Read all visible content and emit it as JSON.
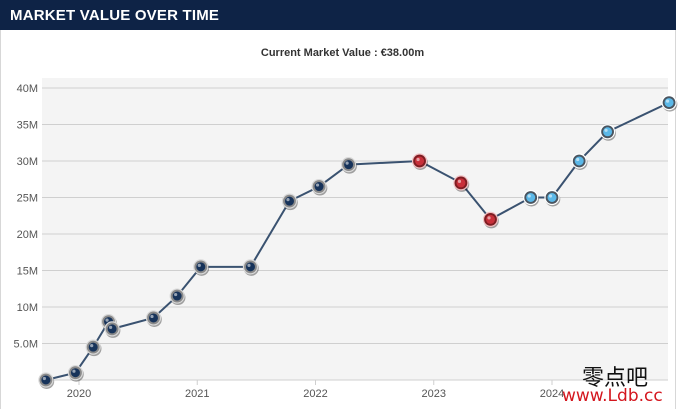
{
  "header": {
    "title": "Market value over time"
  },
  "chart": {
    "subtitle": "Current Market Value : €38.00m"
  },
  "watermark": {
    "chinese": "零点吧",
    "url": "www.Ldb.cc"
  },
  "chart_data": {
    "type": "line",
    "title": "Current Market Value : €38.00m",
    "xlabel": "",
    "ylabel": "",
    "x_ticks": [
      "2020",
      "2021",
      "2022",
      "2023",
      "2024"
    ],
    "y_ticks": [
      "5.0M",
      "10M",
      "15M",
      "20M",
      "25M",
      "30M",
      "35M",
      "40M"
    ],
    "ylim": [
      0,
      40
    ],
    "xlim": [
      2019.7,
      2025.05
    ],
    "grid": "horizontal",
    "line_color": "#3a5270",
    "series": [
      {
        "name": "",
        "x": [
          2019.72,
          2019.97,
          2020.12,
          2020.25,
          2020.28,
          2020.63,
          2020.83,
          2021.03,
          2021.45,
          2021.78,
          2022.03,
          2022.28,
          2022.88,
          2023.23,
          2023.48,
          2023.82,
          2024.0,
          2024.23,
          2024.47,
          2024.99
        ],
        "values": [
          0,
          1,
          4.5,
          8,
          7,
          8.5,
          11.5,
          15.5,
          15.5,
          24.5,
          26.5,
          29.5,
          30,
          27,
          22,
          25,
          25,
          30,
          34,
          38
        ],
        "markers": [
          "club-navy",
          "club-navy",
          "club-navy",
          "club-navy",
          "club-navy",
          "club-navy",
          "club-navy",
          "club-navy",
          "club-navy",
          "club-navy",
          "club-navy",
          "club-navy",
          "club-red",
          "club-red",
          "club-red",
          "club-skyblue",
          "club-skyblue",
          "club-skyblue",
          "club-skyblue",
          "club-skyblue"
        ]
      }
    ]
  }
}
